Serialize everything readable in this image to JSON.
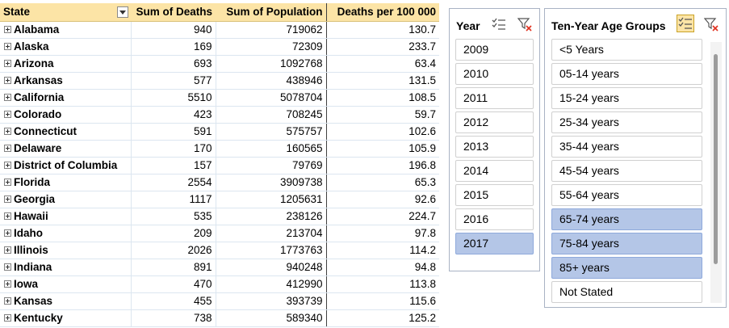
{
  "pivot": {
    "headers": {
      "state": "State",
      "deaths": "Sum of Deaths",
      "population": "Sum of Population",
      "rate": "Deaths per 100 000"
    },
    "rows": [
      {
        "state": "Alabama",
        "deaths": "940",
        "population": "719062",
        "rate": "130.7"
      },
      {
        "state": "Alaska",
        "deaths": "169",
        "population": "72309",
        "rate": "233.7"
      },
      {
        "state": "Arizona",
        "deaths": "693",
        "population": "1092768",
        "rate": "63.4"
      },
      {
        "state": "Arkansas",
        "deaths": "577",
        "population": "438946",
        "rate": "131.5"
      },
      {
        "state": "California",
        "deaths": "5510",
        "population": "5078704",
        "rate": "108.5"
      },
      {
        "state": "Colorado",
        "deaths": "423",
        "population": "708245",
        "rate": "59.7"
      },
      {
        "state": "Connecticut",
        "deaths": "591",
        "population": "575757",
        "rate": "102.6"
      },
      {
        "state": "Delaware",
        "deaths": "170",
        "population": "160565",
        "rate": "105.9"
      },
      {
        "state": "District of Columbia",
        "deaths": "157",
        "population": "79769",
        "rate": "196.8"
      },
      {
        "state": "Florida",
        "deaths": "2554",
        "population": "3909738",
        "rate": "65.3"
      },
      {
        "state": "Georgia",
        "deaths": "1117",
        "population": "1205631",
        "rate": "92.6"
      },
      {
        "state": "Hawaii",
        "deaths": "535",
        "population": "238126",
        "rate": "224.7"
      },
      {
        "state": "Idaho",
        "deaths": "209",
        "population": "213704",
        "rate": "97.8"
      },
      {
        "state": "Illinois",
        "deaths": "2026",
        "population": "1773763",
        "rate": "114.2"
      },
      {
        "state": "Indiana",
        "deaths": "891",
        "population": "940248",
        "rate": "94.8"
      },
      {
        "state": "Iowa",
        "deaths": "470",
        "population": "412990",
        "rate": "113.8"
      },
      {
        "state": "Kansas",
        "deaths": "455",
        "population": "393739",
        "rate": "115.6"
      },
      {
        "state": "Kentucky",
        "deaths": "738",
        "population": "589340",
        "rate": "125.2"
      }
    ]
  },
  "year_slicer": {
    "title": "Year",
    "items": [
      {
        "label": "2009",
        "selected": false
      },
      {
        "label": "2010",
        "selected": false
      },
      {
        "label": "2011",
        "selected": false
      },
      {
        "label": "2012",
        "selected": false
      },
      {
        "label": "2013",
        "selected": false
      },
      {
        "label": "2014",
        "selected": false
      },
      {
        "label": "2015",
        "selected": false
      },
      {
        "label": "2016",
        "selected": false
      },
      {
        "label": "2017",
        "selected": true
      }
    ]
  },
  "age_slicer": {
    "title": "Ten-Year Age Groups",
    "items": [
      {
        "label": "<5 Years",
        "selected": false
      },
      {
        "label": "05-14 years",
        "selected": false
      },
      {
        "label": "15-24 years",
        "selected": false
      },
      {
        "label": "25-34 years",
        "selected": false
      },
      {
        "label": "35-44 years",
        "selected": false
      },
      {
        "label": "45-54 years",
        "selected": false
      },
      {
        "label": "55-64 years",
        "selected": false
      },
      {
        "label": "65-74 years",
        "selected": true
      },
      {
        "label": "75-84 years",
        "selected": true
      },
      {
        "label": "85+ years",
        "selected": true
      },
      {
        "label": "Not Stated",
        "selected": false
      }
    ]
  },
  "colors": {
    "header_bg": "#fce4a6",
    "selected_item": "#b4c6e7",
    "clear_filter_x": "#e0301e"
  },
  "icons": {
    "expand": "plus-box-icon",
    "multi_select": "multi-select-icon",
    "clear_filter": "clear-filter-icon",
    "dropdown": "filter-dropdown-icon"
  }
}
